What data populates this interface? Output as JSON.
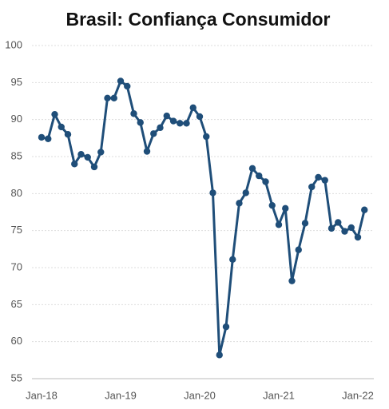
{
  "chart_data": {
    "type": "line",
    "title": "Brasil: Confiança Consumidor",
    "categories": [
      "Jan-18",
      null,
      null,
      null,
      null,
      null,
      null,
      null,
      null,
      null,
      null,
      null,
      "Jan-19",
      null,
      null,
      null,
      null,
      null,
      null,
      null,
      null,
      null,
      null,
      null,
      "Jan-20",
      null,
      null,
      null,
      null,
      null,
      null,
      null,
      null,
      null,
      null,
      null,
      "Jan-21",
      null,
      null,
      null,
      null,
      null,
      null,
      null,
      null,
      null,
      null,
      null,
      "Jan-22",
      null
    ],
    "series": [
      {
        "name": "Confiança Consumidor",
        "color": "#1f4e79",
        "values": [
          87.6,
          87.4,
          90.7,
          89.0,
          88.0,
          84.0,
          85.3,
          84.9,
          83.6,
          85.6,
          92.9,
          92.9,
          95.2,
          94.5,
          90.8,
          89.6,
          85.7,
          88.1,
          88.9,
          90.5,
          89.8,
          89.5,
          89.5,
          91.6,
          90.4,
          87.7,
          80.1,
          58.2,
          62.0,
          71.1,
          78.7,
          80.1,
          83.4,
          82.4,
          81.6,
          78.4,
          75.8,
          78.0,
          68.2,
          72.4,
          76.0,
          80.9,
          82.2,
          81.8,
          75.3,
          76.1,
          74.9,
          75.4,
          74.1,
          77.8
        ]
      }
    ],
    "ylim": [
      55,
      100
    ],
    "yticks": [
      55,
      60,
      65,
      70,
      75,
      80,
      85,
      90,
      95,
      100
    ],
    "grid": true
  }
}
